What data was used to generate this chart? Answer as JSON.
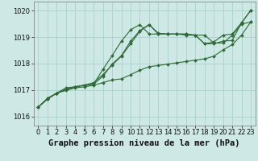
{
  "title": "Graphe pression niveau de la mer (hPa)",
  "bg_color": "#cde8e5",
  "grid_color": "#aed4d0",
  "line_color": "#2d6a35",
  "marker_color": "#2d6a35",
  "ylim": [
    1015.65,
    1020.35
  ],
  "yticks": [
    1016,
    1017,
    1018,
    1019,
    1020
  ],
  "xlim": [
    -0.5,
    23.5
  ],
  "xticks": [
    0,
    1,
    2,
    3,
    4,
    5,
    6,
    7,
    8,
    9,
    10,
    11,
    12,
    13,
    14,
    15,
    16,
    17,
    18,
    19,
    20,
    21,
    22,
    23
  ],
  "s1": [
    1016.35,
    1016.65,
    1016.88,
    1016.98,
    1017.08,
    1017.12,
    1017.18,
    1017.28,
    1017.38,
    1017.42,
    1017.58,
    1017.75,
    1017.88,
    1017.93,
    1017.98,
    1018.03,
    1018.08,
    1018.13,
    1018.18,
    1018.28,
    1018.52,
    1018.72,
    1019.08,
    1019.58
  ],
  "s2": [
    1016.35,
    1016.65,
    1016.88,
    1017.08,
    1017.12,
    1017.18,
    1017.28,
    1017.58,
    1017.95,
    1018.28,
    1018.75,
    1019.22,
    1019.48,
    1019.15,
    1019.12,
    1019.12,
    1019.12,
    1019.08,
    1019.08,
    1018.78,
    1018.78,
    1019.08,
    1019.5,
    1019.58
  ],
  "s3": [
    1016.35,
    1016.68,
    1016.88,
    1017.02,
    1017.12,
    1017.18,
    1017.22,
    1017.52,
    1017.98,
    1018.3,
    1018.85,
    1019.25,
    1019.48,
    1019.12,
    1019.12,
    1019.12,
    1019.12,
    1019.08,
    1018.75,
    1018.75,
    1018.85,
    1018.88,
    1019.55,
    1020.02
  ],
  "s4": [
    1016.35,
    1016.68,
    1016.88,
    1017.02,
    1017.12,
    1017.18,
    1017.22,
    1017.78,
    1018.3,
    1018.85,
    1019.28,
    1019.48,
    1019.12,
    1019.12,
    1019.12,
    1019.12,
    1019.08,
    1019.08,
    1018.75,
    1018.82,
    1019.08,
    1019.12,
    1019.55,
    1020.02
  ],
  "tick_fontsize": 6,
  "label_fontsize": 7.5
}
